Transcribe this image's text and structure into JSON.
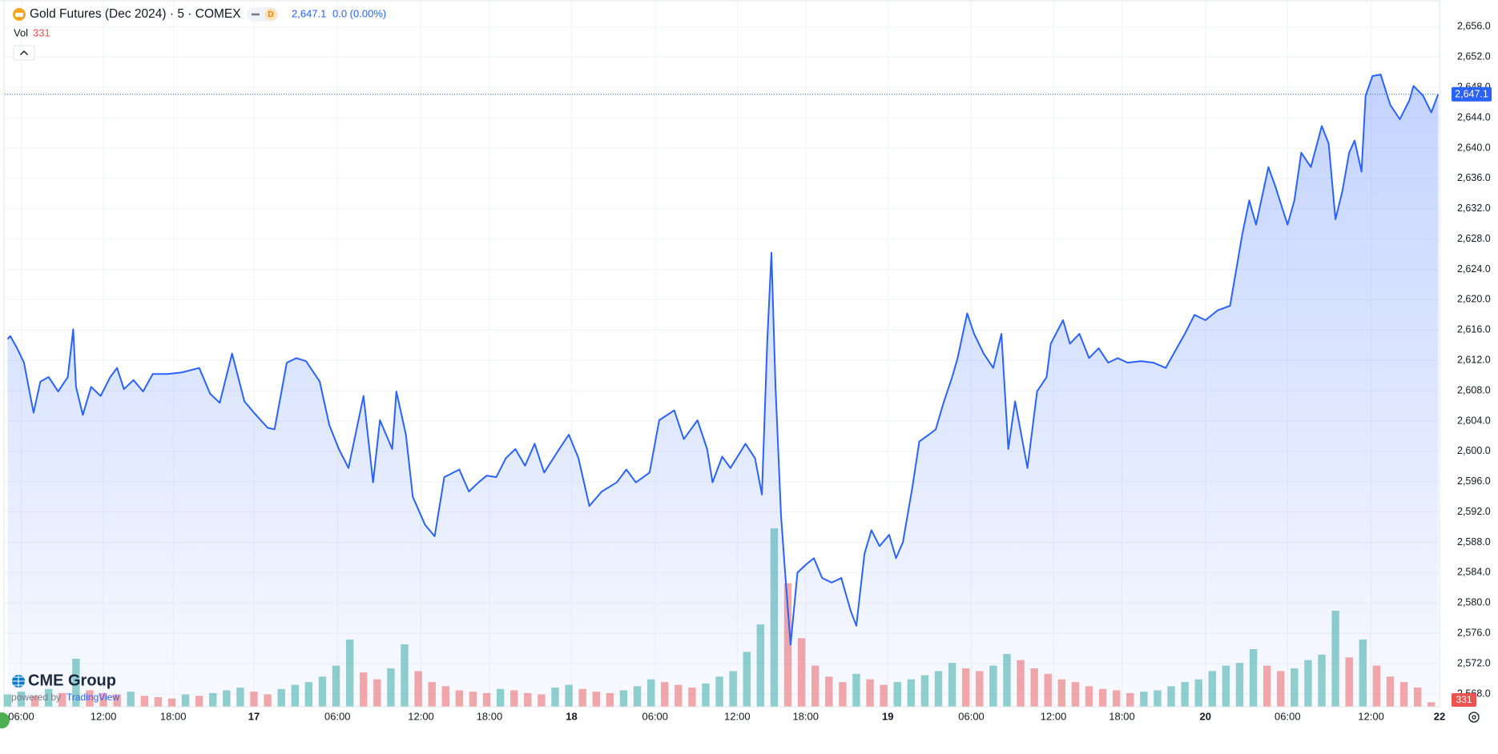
{
  "chart_data": {
    "type": "line",
    "title": "Gold Futures (Dec 2024) · 5 · COMEX",
    "interval_badge": "D",
    "last_price": {
      "value": 2647.1,
      "label": "2,647.1"
    },
    "change": "0.0 (0.00%)",
    "volume_label": "Vol",
    "x": [
      5.0,
      5.2,
      5.7,
      6.2,
      6.9,
      7.4,
      8.0,
      8.7,
      9.4,
      9.8,
      10.0,
      10.5,
      11.1,
      11.8,
      12.5,
      13.0,
      13.5,
      14.2,
      14.9,
      15.6,
      16.7,
      17.7,
      19.0,
      19.8,
      20.5,
      21.4,
      22.3,
      23.0,
      24.0,
      24.5,
      25.4,
      26.1,
      26.8,
      27.8,
      28.5,
      29.2,
      29.9,
      31.0,
      31.7,
      32.2,
      33.1,
      33.4,
      34.1,
      34.6,
      35.5,
      36.2,
      36.9,
      38.0,
      38.7,
      39.4,
      40.0,
      40.7,
      41.4,
      42.1,
      42.8,
      43.5,
      44.2,
      45.3,
      46.0,
      46.7,
      47.5,
      48.4,
      49.5,
      50.2,
      50.9,
      51.9,
      52.6,
      53.7,
      54.4,
      55.4,
      56.1,
      56.5,
      57.2,
      57.8,
      58.9,
      59.6,
      60.1,
      60.5,
      60.8,
      61.1,
      61.5,
      61.8,
      62.2,
      62.7,
      63.4,
      63.9,
      64.5,
      65.2,
      65.9,
      66.6,
      67.0,
      67.6,
      68.1,
      68.7,
      69.4,
      69.9,
      70.4,
      71.1,
      71.6,
      72.3,
      72.8,
      73.4,
      74.0,
      74.4,
      75.1,
      75.6,
      76.3,
      77.0,
      77.6,
      78.1,
      78.6,
      79.5,
      80.2,
      80.9,
      81.2,
      82.1,
      82.6,
      83.3,
      84.0,
      84.7,
      85.4,
      86.1,
      86.8,
      87.8,
      88.7,
      89.6,
      90.4,
      91.0,
      91.7,
      92.5,
      93.4,
      94.3,
      94.6,
      95.2,
      95.7,
      96.2,
      97.1,
      97.6,
      98.5,
      99.0,
      99.5,
      100.2,
      101.0,
      101.5,
      102.0,
      102.5,
      103.0,
      103.4,
      103.9,
      104.2,
      104.7,
      105.3,
      106.0,
      106.7,
      107.4,
      107.7,
      108.4,
      109.0,
      109.5
    ],
    "series": [
      {
        "color": "#2962ff",
        "values": [
          2614.8,
          2615.2,
          2613.6,
          2611.7,
          2605.1,
          2609.2,
          2609.8,
          2607.9,
          2609.8,
          2616.1,
          2608.5,
          2604.8,
          2608.5,
          2607.3,
          2609.8,
          2611.0,
          2608.2,
          2609.4,
          2607.9,
          2610.2,
          2610.2,
          2610.4,
          2611.0,
          2607.6,
          2606.4,
          2612.9,
          2606.6,
          2605.1,
          2603.1,
          2602.9,
          2611.7,
          2612.3,
          2611.9,
          2609.2,
          2603.5,
          2600.3,
          2597.8,
          2607.3,
          2595.9,
          2604.1,
          2600.3,
          2607.9,
          2602.2,
          2594.0,
          2590.3,
          2588.8,
          2596.6,
          2597.6,
          2594.7,
          2595.9,
          2596.8,
          2596.6,
          2599.1,
          2600.3,
          2598.1,
          2601.0,
          2597.2,
          2600.3,
          2602.2,
          2599.1,
          2592.8,
          2594.7,
          2595.9,
          2597.6,
          2595.9,
          2597.2,
          2604.1,
          2605.4,
          2601.6,
          2604.1,
          2600.3,
          2595.9,
          2599.3,
          2597.8,
          2601.0,
          2599.1,
          2594.3,
          2614.8,
          2626.2,
          2608.5,
          2591.5,
          2584.0,
          2574.5,
          2584.0,
          2585.2,
          2585.9,
          2583.3,
          2582.7,
          2583.3,
          2578.9,
          2577.0,
          2586.5,
          2589.6,
          2587.5,
          2589.0,
          2585.9,
          2588.0,
          2595.3,
          2601.3,
          2602.2,
          2602.9,
          2606.6,
          2609.8,
          2612.3,
          2618.2,
          2615.5,
          2612.9,
          2611.0,
          2615.5,
          2600.3,
          2606.6,
          2597.8,
          2607.9,
          2609.8,
          2614.2,
          2617.3,
          2614.2,
          2615.5,
          2612.3,
          2613.6,
          2611.7,
          2612.3,
          2611.7,
          2611.9,
          2611.7,
          2611.0,
          2613.6,
          2615.5,
          2618.0,
          2617.3,
          2618.6,
          2619.2,
          2622.4,
          2628.7,
          2633.1,
          2629.9,
          2637.5,
          2635.0,
          2629.9,
          2633.1,
          2639.4,
          2637.5,
          2642.9,
          2640.6,
          2630.6,
          2634.3,
          2639.4,
          2641.0,
          2636.9,
          2646.9,
          2649.5,
          2649.7,
          2645.7,
          2643.8,
          2646.3,
          2648.2,
          2646.9,
          2644.7,
          2647.1
        ]
      }
    ],
    "xlim": [
      4.8,
      109.6
    ],
    "xticks": [
      {
        "value": 6,
        "label": "06:00"
      },
      {
        "value": 12,
        "label": "12:00"
      },
      {
        "value": 17.1,
        "label": "18:00"
      },
      {
        "value": 23,
        "label": "17"
      },
      {
        "value": 29.1,
        "label": "06:00"
      },
      {
        "value": 35.2,
        "label": "12:00"
      },
      {
        "value": 40.2,
        "label": "18:00"
      },
      {
        "value": 46.2,
        "label": "18"
      },
      {
        "value": 52.3,
        "label": "06:00"
      },
      {
        "value": 58.3,
        "label": "12:00"
      },
      {
        "value": 63.3,
        "label": "18:00"
      },
      {
        "value": 69.3,
        "label": "19"
      },
      {
        "value": 75.4,
        "label": "06:00"
      },
      {
        "value": 81.4,
        "label": "12:00"
      },
      {
        "value": 86.4,
        "label": "18:00"
      },
      {
        "value": 92.5,
        "label": "20"
      },
      {
        "value": 98.5,
        "label": "06:00"
      },
      {
        "value": 104.6,
        "label": "12:00"
      },
      {
        "value": 109.6,
        "label": "22"
      }
    ],
    "ylim": [
      2566.31,
      2659.53
    ],
    "yticks": [
      {
        "value": 2568,
        "label": "2,568.0"
      },
      {
        "value": 2572,
        "label": "2,572.0"
      },
      {
        "value": 2576,
        "label": "2,576.0"
      },
      {
        "value": 2580,
        "label": "2,580.0"
      },
      {
        "value": 2584,
        "label": "2,584.0"
      },
      {
        "value": 2588,
        "label": "2,588.0"
      },
      {
        "value": 2592,
        "label": "2,592.0"
      },
      {
        "value": 2596,
        "label": "2,596.0"
      },
      {
        "value": 2600,
        "label": "2,600.0"
      },
      {
        "value": 2604,
        "label": "2,604.0"
      },
      {
        "value": 2608,
        "label": "2,608.0"
      },
      {
        "value": 2612,
        "label": "2,612.0"
      },
      {
        "value": 2616,
        "label": "2,616.0"
      },
      {
        "value": 2620,
        "label": "2,620.0"
      },
      {
        "value": 2624,
        "label": "2,624.0"
      },
      {
        "value": 2628,
        "label": "2,628.0"
      },
      {
        "value": 2632,
        "label": "2,632.0"
      },
      {
        "value": 2636,
        "label": "2,636.0"
      },
      {
        "value": 2640,
        "label": "2,640.0"
      },
      {
        "value": 2644,
        "label": "2,644.0"
      },
      {
        "value": 2648,
        "label": "2,648.0"
      },
      {
        "value": 2652,
        "label": "2,652.0"
      },
      {
        "value": 2656,
        "label": "2,656.0"
      }
    ],
    "grid": true,
    "volume": {
      "x": [
        5,
        6,
        7,
        8,
        9,
        10,
        11,
        12,
        13,
        14,
        15,
        16,
        17,
        18,
        19,
        20,
        21,
        22,
        23,
        24,
        25,
        26,
        27,
        28,
        29,
        30,
        31,
        32,
        33,
        34,
        35,
        36,
        37,
        38,
        39,
        40,
        41,
        42,
        43,
        44,
        45,
        46,
        47,
        48,
        49,
        50,
        51,
        52,
        53,
        54,
        55,
        56,
        57,
        58,
        59,
        60,
        61,
        62,
        63,
        64,
        65,
        66,
        67,
        68,
        69,
        70,
        71,
        72,
        73,
        74,
        75,
        76,
        77,
        78,
        79,
        80,
        81,
        82,
        83,
        84,
        85,
        86,
        87,
        88,
        89,
        90,
        91,
        92,
        93,
        94,
        95,
        96,
        97,
        98,
        99,
        100,
        101,
        102,
        103,
        104,
        105,
        106,
        107,
        108,
        109
      ],
      "values": [
        900,
        1100,
        800,
        1300,
        1000,
        3500,
        1200,
        1000,
        900,
        1100,
        800,
        700,
        600,
        900,
        800,
        1000,
        1200,
        1400,
        1100,
        900,
        1300,
        1600,
        1800,
        2200,
        3000,
        4900,
        2500,
        2000,
        2800,
        4550,
        2600,
        1800,
        1500,
        1200,
        1100,
        1000,
        1300,
        1200,
        1000,
        900,
        1400,
        1600,
        1300,
        1100,
        1000,
        1200,
        1500,
        2000,
        1800,
        1600,
        1400,
        1700,
        2200,
        2600,
        4000,
        6000,
        13000,
        9000,
        5000,
        3000,
        2200,
        1800,
        2400,
        2000,
        1600,
        1800,
        2000,
        2300,
        2600,
        3200,
        2800,
        2600,
        3000,
        3850,
        3400,
        2800,
        2400,
        2000,
        1800,
        1500,
        1300,
        1200,
        1000,
        1100,
        1200,
        1500,
        1800,
        2000,
        2600,
        3000,
        3200,
        4200,
        3000,
        2600,
        2800,
        3400,
        3800,
        7000,
        3600,
        4900,
        3000,
        2200,
        1800,
        1400,
        331
      ],
      "colors": [
        "#26a69a",
        "#ef5350"
      ],
      "vlim": [
        0,
        14000
      ]
    },
    "branding": {
      "logo": "CME Group",
      "powered_by": "powered by",
      "powered_brand": "TradingView"
    }
  }
}
